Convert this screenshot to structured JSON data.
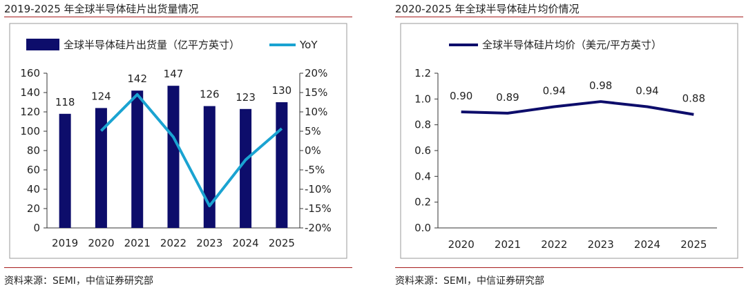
{
  "left_panel": {
    "title": "2019-2025 年全球半导体硅片出货量情况",
    "source": "资料来源：SEMI，中信证券研究部"
  },
  "right_panel": {
    "title": "2020-2025 年全球半导体硅片均价情况",
    "source": "资料来源：SEMI，中信证券研究部"
  },
  "colors": {
    "bar": "#0d0d6b",
    "yoy": "#1aa3d1",
    "line": "#0d0d6b",
    "rule": "#a61c1c"
  },
  "chart_data": [
    {
      "type": "bar",
      "title": "2019-2025 年全球半导体硅片出货量情况",
      "categories": [
        "2019",
        "2020",
        "2021",
        "2022",
        "2023",
        "2024",
        "2025"
      ],
      "series": [
        {
          "name": "全球半导体硅片出货量（亿平方英寸）",
          "type": "bar",
          "axis": "left",
          "values": [
            118,
            124,
            142,
            147,
            126,
            123,
            130
          ],
          "labels": [
            "118",
            "124",
            "142",
            "147",
            "126",
            "123",
            "130"
          ]
        },
        {
          "name": "YoY",
          "type": "line",
          "axis": "right",
          "x": [
            "2020",
            "2021",
            "2022",
            "2023",
            "2024",
            "2025"
          ],
          "values": [
            5.1,
            14.5,
            3.5,
            -14.3,
            -2.4,
            5.7
          ]
        }
      ],
      "ylim": [
        0,
        160
      ],
      "yticks": [
        "0",
        "20",
        "40",
        "60",
        "80",
        "100",
        "120",
        "140",
        "160"
      ],
      "y2lim": [
        -20,
        20
      ],
      "y2ticks": [
        "-20%",
        "-15%",
        "-10%",
        "-5%",
        "0%",
        "5%",
        "10%",
        "15%",
        "20%"
      ],
      "legend": "top"
    },
    {
      "type": "line",
      "title": "2020-2025 年全球半导体硅片均价情况",
      "categories": [
        "2020",
        "2021",
        "2022",
        "2023",
        "2024",
        "2025"
      ],
      "series": [
        {
          "name": "全球半导体硅片均价（美元/平方英寸）",
          "values": [
            0.9,
            0.89,
            0.94,
            0.98,
            0.94,
            0.88
          ],
          "labels": [
            "0.90",
            "0.89",
            "0.94",
            "0.98",
            "0.94",
            "0.88"
          ]
        }
      ],
      "ylim": [
        0,
        1.2
      ],
      "yticks": [
        "0.0",
        "0.2",
        "0.4",
        "0.6",
        "0.8",
        "1.0",
        "1.2"
      ],
      "legend": "top"
    }
  ]
}
